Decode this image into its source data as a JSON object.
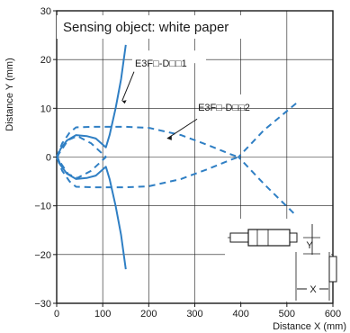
{
  "chart_data": {
    "type": "line",
    "title": "Sensing object: white paper",
    "xlabel": "Distance X (mm)",
    "ylabel": "Distance Y (mm)",
    "xlim": [
      0,
      600
    ],
    "ylim": [
      -30,
      30
    ],
    "xticks": [
      0,
      100,
      200,
      300,
      400,
      500,
      600
    ],
    "yticks": [
      -30,
      -20,
      -10,
      0,
      10,
      20,
      30
    ],
    "grid": true,
    "colors": {
      "series": "#2f7fc4",
      "grid": "#1a1a1a",
      "frame": "#1a1a1a"
    },
    "series": [
      {
        "name": "E3F□-D□□1",
        "style": "solid",
        "points": [
          [
            150,
            23
          ],
          [
            140,
            16
          ],
          [
            128,
            10
          ],
          [
            115,
            4.5
          ],
          [
            107,
            2
          ],
          [
            85,
            3.8
          ],
          [
            65,
            4.3
          ],
          [
            42,
            4.5
          ],
          [
            22,
            3.4
          ],
          [
            8,
            1.6
          ],
          [
            2,
            0
          ],
          [
            8,
            -1.6
          ],
          [
            22,
            -3.4
          ],
          [
            42,
            -4.5
          ],
          [
            65,
            -4.3
          ],
          [
            85,
            -3.8
          ],
          [
            107,
            -2
          ],
          [
            115,
            -4.5
          ],
          [
            128,
            -10
          ],
          [
            140,
            -16
          ],
          [
            150,
            -23
          ]
        ]
      },
      {
        "name": "E3F□-D□□2",
        "style": "dashed",
        "points": [
          [
            0,
            0
          ],
          [
            12,
            2.8
          ],
          [
            28,
            5.0
          ],
          [
            42,
            6.1
          ],
          [
            80,
            6.2
          ],
          [
            150,
            6.2
          ],
          [
            200,
            6.0
          ],
          [
            270,
            4.5
          ],
          [
            330,
            2.4
          ],
          [
            380,
            0.5
          ],
          [
            395,
            0
          ],
          [
            380,
            -0.5
          ],
          [
            330,
            -2.4
          ],
          [
            270,
            -4.5
          ],
          [
            200,
            -6.0
          ],
          [
            150,
            -6.2
          ],
          [
            80,
            -6.2
          ],
          [
            42,
            -6.1
          ],
          [
            28,
            -5.0
          ],
          [
            12,
            -2.8
          ],
          [
            0,
            0
          ]
        ],
        "extension": [
          [
            520,
            11
          ],
          [
            450,
            5.5
          ],
          [
            395,
            0
          ],
          [
            450,
            -5.5
          ],
          [
            520,
            -12
          ]
        ],
        "inner": [
          [
            0,
            0
          ],
          [
            25,
            3.5
          ],
          [
            45,
            4.3
          ],
          [
            75,
            2.8
          ],
          [
            107,
            0
          ],
          [
            75,
            -2.8
          ],
          [
            45,
            -4.3
          ],
          [
            25,
            -3.5
          ],
          [
            0,
            0
          ]
        ]
      }
    ],
    "labels": [
      {
        "text": "E3F□-D□□1",
        "series": 0
      },
      {
        "text": "E3F□-D□□2",
        "series": 1
      }
    ],
    "inset": {
      "labels": [
        "Y",
        "X"
      ]
    }
  }
}
